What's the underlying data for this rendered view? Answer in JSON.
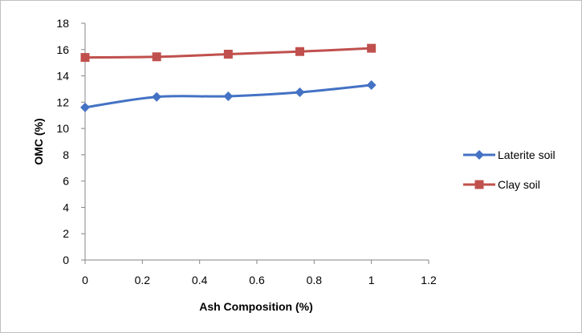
{
  "chart_data": {
    "type": "line",
    "title": "",
    "xlabel": "Ash Composition (%)",
    "ylabel": "OMC (%)",
    "xlim": [
      0,
      1.2
    ],
    "ylim": [
      0,
      18
    ],
    "x_ticks": [
      "0",
      "0.2",
      "0.4",
      "0.6",
      "0.8",
      "1",
      "1.2"
    ],
    "y_ticks": [
      "0",
      "2",
      "4",
      "6",
      "8",
      "10",
      "12",
      "14",
      "16",
      "18"
    ],
    "x": [
      0,
      0.25,
      0.5,
      0.75,
      1
    ],
    "grid": false,
    "legend_position": "right",
    "series": [
      {
        "name": "Laterite soil",
        "values": [
          11.6,
          12.4,
          12.45,
          12.75,
          13.3
        ],
        "color": "#4472c4",
        "marker": "diamond"
      },
      {
        "name": "Clay soil",
        "values": [
          15.4,
          15.45,
          15.65,
          15.85,
          16.1
        ],
        "color": "#c0504d",
        "marker": "square"
      }
    ]
  }
}
